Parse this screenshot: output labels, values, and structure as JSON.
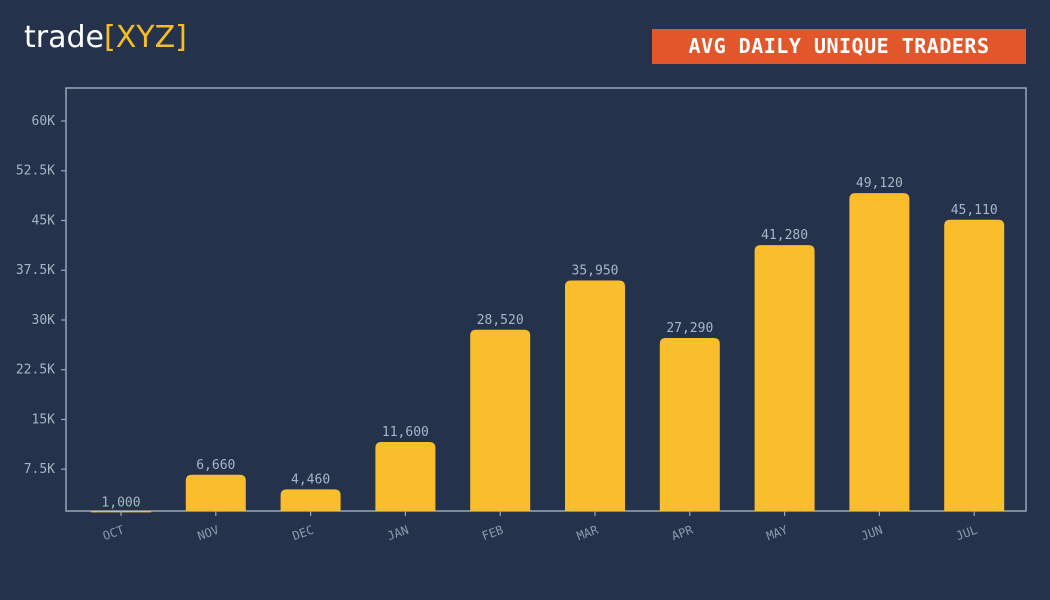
{
  "logo": {
    "text_main": "trade",
    "text_accent": "[XYZ]"
  },
  "chart_data": {
    "type": "bar",
    "title": "AVG DAILY UNIQUE TRADERS",
    "categories": [
      "OCT",
      "NOV",
      "DEC",
      "JAN",
      "FEB",
      "MAR",
      "APR",
      "MAY",
      "JUN",
      "JUL"
    ],
    "values": [
      1000,
      6660,
      4460,
      11600,
      28520,
      35950,
      27290,
      41280,
      49120,
      45110
    ],
    "value_labels": [
      "1,000",
      "6,660",
      "4,460",
      "11,600",
      "28,520",
      "35,950",
      "27,290",
      "41,280",
      "49,120",
      "45,110"
    ],
    "yticks": [
      7500,
      15000,
      22500,
      30000,
      37500,
      45000,
      52500,
      60000
    ],
    "ytick_labels": [
      "7.5K",
      "15K",
      "22.5K",
      "30K",
      "37.5K",
      "45K",
      "52.5K",
      "60K"
    ],
    "ylim": [
      1200,
      60000
    ],
    "xlabel": "",
    "ylabel": "",
    "grid": false,
    "legend": "none",
    "colors": {
      "background": "#24334b",
      "bar": "#fabd2c",
      "axis": "#9aa7b8",
      "title_badge": "#e2562b",
      "logo_accent": "#f5bc27"
    }
  }
}
